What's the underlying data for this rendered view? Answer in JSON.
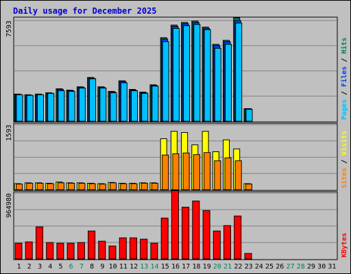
{
  "title": "Daily usage for December 2025",
  "colors": {
    "background": "#c0c0c0",
    "plot_bg": "#c0c0c0",
    "grid": "#808080",
    "title": "#0000cc",
    "hits": "#00805c",
    "files": "#0040ff",
    "pages": "#00c0ff",
    "visits": "#ffff00",
    "sites": "#ff8000",
    "kbytes": "#ff0000",
    "weekday": "#000000",
    "weekend": "#00805c"
  },
  "chart_data": {
    "type": "bar",
    "days": [
      "1",
      "2",
      "3",
      "4",
      "5",
      "6",
      "7",
      "8",
      "9",
      "10",
      "11",
      "12",
      "13",
      "14",
      "15",
      "16",
      "17",
      "18",
      "19",
      "20",
      "21",
      "22",
      "23",
      "24",
      "25",
      "26",
      "27",
      "28",
      "29",
      "30",
      "31"
    ],
    "weekend_days": [
      "6",
      "7",
      "13",
      "14",
      "20",
      "21",
      "27",
      "28"
    ],
    "panels": [
      {
        "id": "hits_files_pages",
        "max_label": "7593",
        "ymax": 7593,
        "side_label": {
          "parts": [
            "Pages",
            " / ",
            "Files",
            " / ",
            "Hits"
          ],
          "colors": [
            "#00c0ff",
            "#000000",
            "#0040ff",
            "#000000",
            "#00805c"
          ]
        },
        "series": [
          {
            "name": "Hits",
            "color": "#00805c",
            "values": [
              2050,
              2000,
              2050,
              2150,
              2450,
              2350,
              2600,
              3300,
              2600,
              2250,
              3050,
              2400,
              2200,
              2750,
              6300,
              7250,
              7450,
              7550,
              7100,
              5800,
              6100,
              7800,
              950,
              0,
              0,
              0,
              0,
              0,
              0,
              0,
              0
            ]
          },
          {
            "name": "Files",
            "color": "#0040ff",
            "values": [
              2000,
              1950,
              2000,
              2100,
              2400,
              2300,
              2550,
              3250,
              2550,
              2200,
              3000,
              2350,
              2150,
              2700,
              6200,
              7150,
              7350,
              7450,
              7000,
              5700,
              6000,
              7600,
              950,
              0,
              0,
              0,
              0,
              0,
              0,
              0,
              0
            ]
          },
          {
            "name": "Pages",
            "color": "#00c0ff",
            "values": [
              2000,
              1950,
              2000,
              2100,
              2300,
              2250,
              2500,
              3200,
              2500,
              2150,
              2900,
              2300,
              2100,
              2650,
              6000,
              7000,
              7200,
              7300,
              6900,
              5500,
              5800,
              7400,
              900,
              0,
              0,
              0,
              0,
              0,
              0,
              0,
              0
            ]
          }
        ]
      },
      {
        "id": "visits_sites",
        "max_label": "1593",
        "ymax": 1593,
        "side_label": {
          "parts": [
            "Sites",
            " / ",
            "Visits"
          ],
          "colors": [
            "#ff8000",
            "#000000",
            "#ffff00"
          ]
        },
        "series": [
          {
            "name": "Visits",
            "color": "#ffff00",
            "values": [
              150,
              170,
              170,
              160,
              190,
              170,
              170,
              160,
              150,
              180,
              160,
              160,
              170,
              170,
              1250,
              1430,
              1400,
              1100,
              1430,
              930,
              1220,
              1000,
              150,
              0,
              0,
              0,
              0,
              0,
              0,
              0,
              0
            ]
          },
          {
            "name": "Sites",
            "color": "#ff8000",
            "values": [
              140,
              160,
              160,
              150,
              170,
              160,
              160,
              150,
              140,
              170,
              150,
              150,
              160,
              160,
              850,
              880,
              900,
              860,
              910,
              710,
              780,
              710,
              140,
              0,
              0,
              0,
              0,
              0,
              0,
              0,
              0
            ]
          }
        ]
      },
      {
        "id": "kbytes",
        "max_label": "964980",
        "ymax": 964980,
        "side_label": {
          "parts": [
            "KBytes"
          ],
          "colors": [
            "#ff0000"
          ]
        },
        "series": [
          {
            "name": "KBytes",
            "color": "#ff0000",
            "values": [
              230000,
              250000,
              470000,
              240000,
              230000,
              230000,
              240000,
              410000,
              260000,
              190000,
              310000,
              310000,
              290000,
              230000,
              600000,
              1000000,
              760000,
              850000,
              710000,
              410000,
              490000,
              630000,
              80000,
              0,
              0,
              0,
              0,
              0,
              0,
              0,
              0
            ]
          }
        ]
      }
    ]
  }
}
